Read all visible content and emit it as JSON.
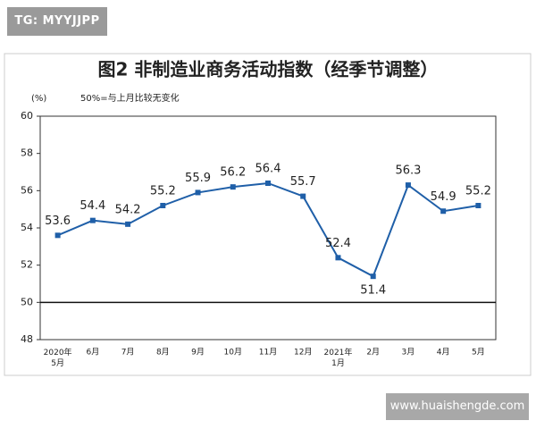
{
  "badge": "TG: MYYJJPP",
  "watermark": "www.huaishengde.com",
  "chart_data": {
    "type": "line",
    "title": "图2  非制造业商务活动指数（经季节调整）",
    "y_label": "(%)",
    "subtitle": "50%=与上月比较无变化",
    "categories": [
      "2020年\n5月",
      "6月",
      "7月",
      "8月",
      "9月",
      "10月",
      "11月",
      "12月",
      "2021年\n1月",
      "2月",
      "3月",
      "4月",
      "5月"
    ],
    "values": [
      53.6,
      54.4,
      54.2,
      55.2,
      55.9,
      56.2,
      56.4,
      55.7,
      52.4,
      51.4,
      56.3,
      54.9,
      55.2
    ],
    "color": "#1f5fa8",
    "reference_value": 50,
    "ylim": [
      48,
      60
    ],
    "yticks": [
      48,
      50,
      52,
      54,
      56,
      58,
      60
    ]
  }
}
